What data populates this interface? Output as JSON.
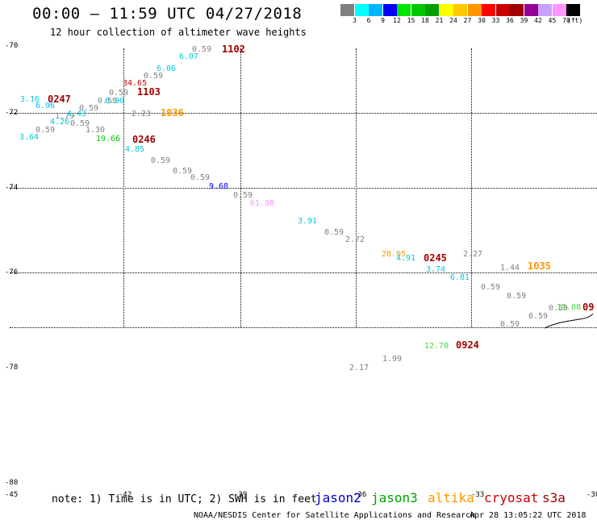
{
  "title": "00:00 – 11:59 UTC 04/27/2018",
  "subtitle": "12 hour collection of altimeter wave heights",
  "colorbar": {
    "unit": "(ft)",
    "ticks": [
      "3",
      "6",
      "9",
      "12",
      "15",
      "18",
      "21",
      "24",
      "27",
      "30",
      "33",
      "36",
      "39",
      "42",
      "45",
      "70"
    ],
    "colors": [
      "#808080",
      "#00ffff",
      "#00b4ff",
      "#0000ff",
      "#00e600",
      "#00c800",
      "#00a000",
      "#ffff00",
      "#ffc800",
      "#ff9600",
      "#ff0000",
      "#c80000",
      "#a00000",
      "#960096",
      "#c8a0ff",
      "#ff96ff",
      "#000000"
    ]
  },
  "axes": {
    "lat_labels": [
      "-70",
      "-72",
      "-74",
      "-76",
      "-78",
      "-80"
    ],
    "lon_labels": [
      "-45",
      "-42",
      "-39",
      "-36",
      "-33",
      "-30"
    ]
  },
  "observations": [
    {
      "v": "0.59",
      "c": "#808080"
    },
    {
      "v": "6.07",
      "c": "#00c8dc"
    },
    {
      "v": "6.06",
      "c": "#00c8dc"
    },
    {
      "v": "0.59",
      "c": "#808080"
    },
    {
      "v": "34.65",
      "c": "#c80000"
    },
    {
      "v": "0.59",
      "c": "#808080"
    },
    {
      "v": "3.16",
      "c": "#00c8dc"
    },
    {
      "v": "6.96",
      "c": "#00b4ff"
    },
    {
      "v": "0.59",
      "c": "#808080"
    },
    {
      "v": "0.59",
      "c": "#808080"
    },
    {
      "v": "6.90",
      "c": "#00c8dc"
    },
    {
      "v": "1.79",
      "c": "#808080"
    },
    {
      "v": "4.43",
      "c": "#00c8dc"
    },
    {
      "v": "2.23",
      "c": "#808080"
    },
    {
      "v": "4.26",
      "c": "#00c8dc"
    },
    {
      "v": "0.59",
      "c": "#808080"
    },
    {
      "v": "0.59",
      "c": "#808080"
    },
    {
      "v": "1.30",
      "c": "#808080"
    },
    {
      "v": "3.64",
      "c": "#00c8dc"
    },
    {
      "v": "19.66",
      "c": "#00c800"
    },
    {
      "v": "4.85",
      "c": "#00c8dc"
    },
    {
      "v": "0.59",
      "c": "#808080"
    },
    {
      "v": "0.59",
      "c": "#808080"
    },
    {
      "v": "0.59",
      "c": "#808080"
    },
    {
      "v": "9.68",
      "c": "#0000ff"
    },
    {
      "v": "0.59",
      "c": "#808080"
    },
    {
      "v": "61.98",
      "c": "#ff96ff"
    },
    {
      "v": "3.91",
      "c": "#00c8dc"
    },
    {
      "v": "0.59",
      "c": "#808080"
    },
    {
      "v": "2.72",
      "c": "#808080"
    },
    {
      "v": "28.05",
      "c": "#ff9600"
    },
    {
      "v": "4.91",
      "c": "#00c8dc"
    },
    {
      "v": "3.74",
      "c": "#00c8dc"
    },
    {
      "v": "2.27",
      "c": "#808080"
    },
    {
      "v": "6.81",
      "c": "#00c8dc"
    },
    {
      "v": "1.44",
      "c": "#808080"
    },
    {
      "v": "0.59",
      "c": "#808080"
    },
    {
      "v": "0.59",
      "c": "#808080"
    },
    {
      "v": "0.59",
      "c": "#808080"
    },
    {
      "v": "15.08",
      "c": "#3cdc3c"
    },
    {
      "v": "0.59",
      "c": "#808080"
    },
    {
      "v": "0.59",
      "c": "#808080"
    },
    {
      "v": "12.70",
      "c": "#3cdc3c"
    },
    {
      "v": "1.99",
      "c": "#808080"
    },
    {
      "v": "2.17",
      "c": "#808080"
    }
  ],
  "pass_times": [
    {
      "v": "1102",
      "c": "#a00000"
    },
    {
      "v": "0247",
      "c": "#a00000"
    },
    {
      "v": "1103",
      "c": "#a00000"
    },
    {
      "v": "1036",
      "c": "#ff9600"
    },
    {
      "v": "0246",
      "c": "#a00000"
    },
    {
      "v": "0245",
      "c": "#a00000"
    },
    {
      "v": "1035",
      "c": "#ff9600"
    },
    {
      "v": "09",
      "c": "#a00000"
    },
    {
      "v": "0924",
      "c": "#a00000"
    }
  ],
  "note": "note: 1) Time is in UTC; 2) SWH is in feet",
  "satellites": [
    {
      "name": "jason2",
      "color": "#0000c8"
    },
    {
      "name": "jason3",
      "color": "#00a000"
    },
    {
      "name": "altika",
      "color": "#ff9600"
    },
    {
      "name": "cryosat",
      "color": "#c80000"
    },
    {
      "name": "s3a",
      "color": "#a00000"
    }
  ],
  "footer": "NOAA/NESDIS Center for Satellite Applications and Research",
  "timestamp": "Apr 28 13:05:22 UTC 2018"
}
